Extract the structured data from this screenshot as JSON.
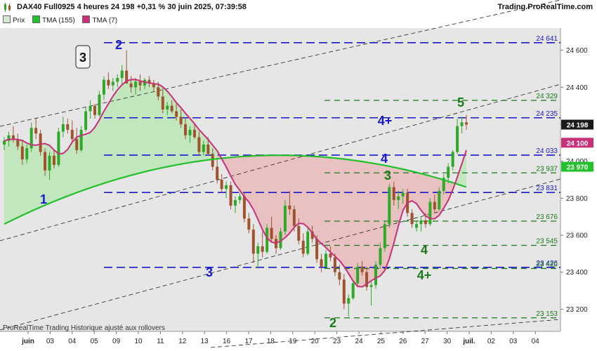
{
  "header": {
    "title": "DAX40 Full0925 4 heures 24 198 +0,31 % 30 juin 2025, 07:39:58",
    "site": "Trading.ProRealTime.com"
  },
  "legend": [
    {
      "label": "Prix",
      "color": "#d7e8d0"
    },
    {
      "label": "TMA (155)",
      "color": "#22c02a"
    },
    {
      "label": "TMA (7)",
      "color": "#c8307a"
    }
  ],
  "footer": "ProRealTime Trading  Historique ajusté aux rollovers",
  "colors": {
    "background_plot": "#e6e6e6",
    "bull": "#2fa82a",
    "bear": "#a0522d",
    "tma155": "#22c02a",
    "tma7": "#c8307a",
    "blue_level": "#1a1acc",
    "green_level": "#1a7a1a",
    "fill_green": "#b6e6b0",
    "fill_red": "#eab4b4"
  },
  "chart_data": {
    "type": "candlestick",
    "ylim": [
      23080,
      24720
    ],
    "x_tick_labels": [
      "juin",
      "03",
      "04",
      "05",
      "09",
      "10",
      "11",
      "12",
      "13",
      "16",
      "17",
      "18",
      "19",
      "20",
      "23",
      "24",
      "25",
      "26",
      "27",
      "30",
      "juil.",
      "02",
      "03",
      "04"
    ],
    "y_tick_labels": [
      "23 200",
      "23 400",
      "23 600",
      "23 800",
      "24 000",
      "24 200",
      "24 400",
      "24 600"
    ],
    "current_price": "24 198",
    "tma155_label": "23 970",
    "tma7_label": "24 100",
    "levels": [
      {
        "value": 24641,
        "label": "24 641",
        "style": "blue"
      },
      {
        "value": 24329,
        "label": "24 329",
        "style": "green"
      },
      {
        "value": 24235,
        "label": "24 235",
        "style": "blue"
      },
      {
        "value": 24033,
        "label": "24 033",
        "style": "blue"
      },
      {
        "value": 23937,
        "label": "23 937",
        "style": "green"
      },
      {
        "value": 23831,
        "label": "23 831",
        "style": "blue"
      },
      {
        "value": 23676,
        "label": "23 676",
        "style": "green"
      },
      {
        "value": 23545,
        "label": "23 545",
        "style": "green"
      },
      {
        "value": 23426,
        "label": "23 426",
        "style": "blue"
      },
      {
        "value": 23420,
        "label": "23 420",
        "style": "green"
      },
      {
        "value": 23153,
        "label": "23 153",
        "style": "green"
      }
    ],
    "wave_labels": [
      {
        "text": "1",
        "color": "blue",
        "at": "early"
      },
      {
        "text": "2",
        "color": "blue",
        "at": "top"
      },
      {
        "text": "3",
        "color": "boxed",
        "at": "top"
      },
      {
        "text": "3",
        "color": "blue",
        "at": "low"
      },
      {
        "text": "2",
        "color": "green",
        "at": "bottom"
      },
      {
        "text": "3",
        "color": "green",
        "at": "mid"
      },
      {
        "text": "4",
        "color": "blue",
        "at": "mid"
      },
      {
        "text": "4+",
        "color": "blue",
        "at": "upper"
      },
      {
        "text": "4",
        "color": "green",
        "at": "mid"
      },
      {
        "text": "4+",
        "color": "green",
        "at": "low"
      },
      {
        "text": "5",
        "color": "green",
        "at": "upper"
      }
    ],
    "candles": [
      [
        24090,
        24130,
        24060,
        24110
      ],
      [
        24110,
        24160,
        24080,
        24140
      ],
      [
        24140,
        24190,
        24100,
        24120
      ],
      [
        24120,
        24150,
        24060,
        24080
      ],
      [
        24080,
        24110,
        23980,
        24010
      ],
      [
        24010,
        24090,
        23990,
        24070
      ],
      [
        24070,
        24210,
        24050,
        24180
      ],
      [
        24180,
        24230,
        24120,
        24150
      ],
      [
        24150,
        24170,
        24030,
        24050
      ],
      [
        24050,
        24070,
        23920,
        23950
      ],
      [
        23950,
        24050,
        23900,
        24030
      ],
      [
        24030,
        24060,
        23960,
        23980
      ],
      [
        23980,
        24180,
        23970,
        24160
      ],
      [
        24160,
        24240,
        24130,
        24200
      ],
      [
        24200,
        24230,
        24150,
        24170
      ],
      [
        24170,
        24220,
        24100,
        24120
      ],
      [
        24120,
        24180,
        24040,
        24060
      ],
      [
        24060,
        24190,
        24050,
        24170
      ],
      [
        24170,
        24290,
        24160,
        24270
      ],
      [
        24270,
        24330,
        24230,
        24300
      ],
      [
        24300,
        24310,
        24230,
        24250
      ],
      [
        24250,
        24380,
        24240,
        24360
      ],
      [
        24360,
        24460,
        24330,
        24440
      ],
      [
        24440,
        24480,
        24390,
        24410
      ],
      [
        24410,
        24450,
        24380,
        24430
      ],
      [
        24430,
        24470,
        24400,
        24450
      ],
      [
        24450,
        24520,
        24410,
        24490
      ],
      [
        24490,
        24600,
        24430,
        24420
      ],
      [
        24420,
        24460,
        24370,
        24400
      ],
      [
        24400,
        24450,
        24360,
        24430
      ],
      [
        24430,
        24470,
        24380,
        24410
      ],
      [
        24410,
        24450,
        24390,
        24440
      ],
      [
        24440,
        24460,
        24400,
        24420
      ],
      [
        24420,
        24440,
        24380,
        24400
      ],
      [
        24400,
        24430,
        24330,
        24350
      ],
      [
        24350,
        24400,
        24260,
        24280
      ],
      [
        24280,
        24320,
        24250,
        24300
      ],
      [
        24300,
        24330,
        24260,
        24270
      ],
      [
        24270,
        24310,
        24220,
        24240
      ],
      [
        24240,
        24280,
        24180,
        24200
      ],
      [
        24200,
        24230,
        24120,
        24140
      ],
      [
        24140,
        24190,
        24100,
        24170
      ],
      [
        24170,
        24200,
        24120,
        24130
      ],
      [
        24130,
        24160,
        24030,
        24050
      ],
      [
        24050,
        24110,
        24030,
        24090
      ],
      [
        24090,
        24130,
        24030,
        24040
      ],
      [
        24040,
        24070,
        23950,
        23970
      ],
      [
        23970,
        24010,
        23880,
        23900
      ],
      [
        23900,
        23930,
        23830,
        23850
      ],
      [
        23850,
        23890,
        23800,
        23870
      ],
      [
        23870,
        23890,
        23740,
        23760
      ],
      [
        23760,
        23810,
        23720,
        23790
      ],
      [
        23790,
        23830,
        23770,
        23810
      ],
      [
        23810,
        23830,
        23670,
        23690
      ],
      [
        23690,
        23720,
        23610,
        23630
      ],
      [
        23630,
        23660,
        23450,
        23500
      ],
      [
        23500,
        23560,
        23420,
        23540
      ],
      [
        23540,
        23620,
        23480,
        23510
      ],
      [
        23510,
        23660,
        23500,
        23640
      ],
      [
        23640,
        23700,
        23560,
        23580
      ],
      [
        23580,
        23600,
        23500,
        23530
      ],
      [
        23530,
        23640,
        23520,
        23620
      ],
      [
        23620,
        23790,
        23600,
        23760
      ],
      [
        23760,
        23840,
        23710,
        23740
      ],
      [
        23740,
        23760,
        23620,
        23650
      ],
      [
        23650,
        23690,
        23550,
        23570
      ],
      [
        23570,
        23610,
        23480,
        23500
      ],
      [
        23500,
        23640,
        23490,
        23620
      ],
      [
        23620,
        23650,
        23560,
        23580
      ],
      [
        23580,
        23600,
        23450,
        23470
      ],
      [
        23470,
        23500,
        23400,
        23430
      ],
      [
        23430,
        23520,
        23420,
        23500
      ],
      [
        23500,
        23540,
        23460,
        23480
      ],
      [
        23480,
        23500,
        23380,
        23400
      ],
      [
        23400,
        23440,
        23330,
        23360
      ],
      [
        23360,
        23390,
        23200,
        23230
      ],
      [
        23230,
        23280,
        23160,
        23260
      ],
      [
        23260,
        23360,
        23250,
        23340
      ],
      [
        23340,
        23450,
        23320,
        23430
      ],
      [
        23430,
        23460,
        23380,
        23400
      ],
      [
        23400,
        23430,
        23300,
        23320
      ],
      [
        23320,
        23350,
        23220,
        23330
      ],
      [
        23330,
        23460,
        23310,
        23440
      ],
      [
        23440,
        23560,
        23420,
        23530
      ],
      [
        23530,
        23680,
        23510,
        23660
      ],
      [
        23660,
        23880,
        23640,
        23860
      ],
      [
        23860,
        23890,
        23760,
        23790
      ],
      [
        23790,
        23840,
        23740,
        23810
      ],
      [
        23810,
        23850,
        23770,
        23830
      ],
      [
        23830,
        23850,
        23700,
        23720
      ],
      [
        23720,
        23740,
        23640,
        23660
      ],
      [
        23640,
        23680,
        23620,
        23660
      ],
      [
        23660,
        23700,
        23620,
        23680
      ],
      [
        23680,
        23720,
        23640,
        23660
      ],
      [
        23660,
        23800,
        23650,
        23780
      ],
      [
        23780,
        23820,
        23720,
        23740
      ],
      [
        23740,
        23860,
        23730,
        23840
      ],
      [
        23840,
        23930,
        23820,
        23910
      ],
      [
        23910,
        23990,
        23880,
        23970
      ],
      [
        23970,
        24060,
        23950,
        24050
      ],
      [
        24050,
        24230,
        24040,
        24190
      ],
      [
        24190,
        24240,
        24150,
        24210
      ],
      [
        24210,
        24250,
        24170,
        24198
      ]
    ]
  }
}
